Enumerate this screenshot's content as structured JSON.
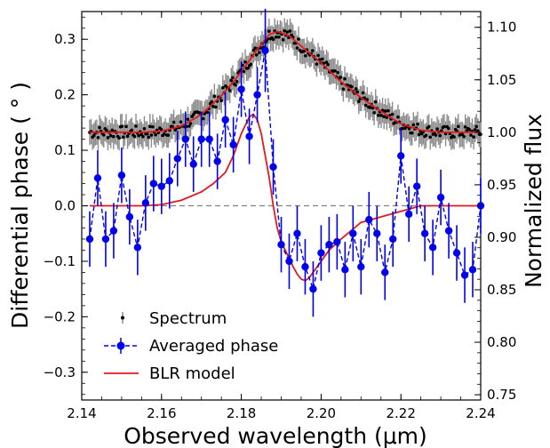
{
  "chart_data": {
    "type": "line",
    "xlabel": "Observed wavelength (μm)",
    "ylabel_left": "Differential phase ( ° )",
    "ylabel_right": "Normalized flux",
    "xlim": [
      2.14,
      2.24
    ],
    "ylim_left": [
      -0.35,
      0.35
    ],
    "ylim_right": [
      0.745,
      1.115
    ],
    "x_ticks": [
      "2.14",
      "2.16",
      "2.18",
      "2.20",
      "2.22",
      "2.24"
    ],
    "y_ticks_left": [
      "−0.3",
      "−0.2",
      "−0.1",
      "0.0",
      "0.1",
      "0.2",
      "0.3"
    ],
    "y_ticks_right": [
      "0.75",
      "0.80",
      "0.85",
      "0.90",
      "0.95",
      "1.00",
      "1.05",
      "1.10"
    ],
    "zero_line": 0.0,
    "legend": {
      "placement": "bottom-left",
      "entries": [
        "Spectrum",
        "Averaged phase",
        "BLR model"
      ]
    },
    "colors": {
      "spectrum": "#000000",
      "spectrum_error": "#8c8c8c",
      "averaged_phase": "#0000ee",
      "blr_model": "#e31a1c",
      "zero_line": "#808080"
    },
    "series": [
      {
        "name": "Spectrum",
        "axis": "right",
        "x": [
          2.142,
          2.145,
          2.15,
          2.155,
          2.16,
          2.165,
          2.17,
          2.175,
          2.178,
          2.181,
          2.184,
          2.187,
          2.189,
          2.192,
          2.195,
          2.2,
          2.205,
          2.21,
          2.215,
          2.22,
          2.225,
          2.23,
          2.235,
          2.24
        ],
        "y": [
          1.0,
          1.0,
          1.0,
          1.0,
          1.001,
          1.006,
          1.017,
          1.035,
          1.048,
          1.063,
          1.079,
          1.093,
          1.096,
          1.092,
          1.082,
          1.066,
          1.048,
          1.033,
          1.02,
          1.008,
          1.002,
          1.0,
          1.0,
          1.0
        ],
        "err": 0.012
      },
      {
        "name": "Averaged phase",
        "axis": "left",
        "x": [
          2.142,
          2.144,
          2.146,
          2.148,
          2.15,
          2.152,
          2.154,
          2.156,
          2.158,
          2.16,
          2.162,
          2.164,
          2.166,
          2.168,
          2.17,
          2.172,
          2.174,
          2.176,
          2.178,
          2.18,
          2.182,
          2.184,
          2.186,
          2.188,
          2.19,
          2.192,
          2.194,
          2.196,
          2.198,
          2.2,
          2.202,
          2.204,
          2.206,
          2.208,
          2.21,
          2.212,
          2.214,
          2.216,
          2.218,
          2.22,
          2.222,
          2.224,
          2.226,
          2.228,
          2.23,
          2.232,
          2.234,
          2.236,
          2.238,
          2.24
        ],
        "y": [
          -0.06,
          0.05,
          -0.06,
          -0.045,
          0.055,
          -0.02,
          -0.075,
          0.005,
          0.04,
          0.035,
          0.045,
          0.085,
          0.12,
          0.075,
          0.12,
          0.12,
          0.08,
          0.155,
          0.11,
          0.21,
          0.125,
          0.2,
          0.28,
          0.07,
          -0.07,
          -0.1,
          -0.05,
          -0.11,
          -0.15,
          -0.085,
          -0.07,
          -0.065,
          -0.115,
          -0.05,
          -0.11,
          -0.025,
          -0.05,
          -0.12,
          -0.06,
          0.09,
          -0.015,
          0.035,
          -0.05,
          -0.075,
          0.015,
          -0.045,
          -0.085,
          -0.125,
          -0.115,
          0.0
        ],
        "err": [
          0.05,
          0.05,
          0.05,
          0.05,
          0.05,
          0.05,
          0.05,
          0.05,
          0.05,
          0.05,
          0.05,
          0.05,
          0.05,
          0.05,
          0.05,
          0.05,
          0.05,
          0.05,
          0.05,
          0.05,
          0.05,
          0.05,
          0.075,
          0.05,
          0.05,
          0.05,
          0.05,
          0.05,
          0.05,
          0.05,
          0.05,
          0.05,
          0.05,
          0.05,
          0.05,
          0.05,
          0.05,
          0.05,
          0.05,
          0.05,
          0.05,
          0.05,
          0.05,
          0.05,
          0.05,
          0.05,
          0.05,
          0.05,
          0.05,
          0.05
        ]
      },
      {
        "name": "BLR model",
        "axis": "left",
        "x": [
          2.142,
          2.15,
          2.155,
          2.16,
          2.165,
          2.17,
          2.173,
          2.176,
          2.178,
          2.18,
          2.182,
          2.183,
          2.184,
          2.185,
          2.186,
          2.187,
          2.188,
          2.189,
          2.19,
          2.191,
          2.192,
          2.193,
          2.194,
          2.195,
          2.196,
          2.197,
          2.198,
          2.2,
          2.202,
          2.205,
          2.21,
          2.215,
          2.22,
          2.225,
          2.23,
          2.235,
          2.24
        ],
        "y": [
          0.0,
          0.0,
          0.0,
          0.002,
          0.01,
          0.025,
          0.04,
          0.06,
          0.09,
          0.13,
          0.16,
          0.165,
          0.155,
          0.13,
          0.09,
          0.05,
          0.0,
          -0.04,
          -0.065,
          -0.08,
          -0.095,
          -0.11,
          -0.123,
          -0.132,
          -0.135,
          -0.13,
          -0.12,
          -0.1,
          -0.08,
          -0.06,
          -0.03,
          -0.02,
          -0.01,
          0.0,
          0.0,
          0.0,
          0.0
        ]
      }
    ]
  }
}
